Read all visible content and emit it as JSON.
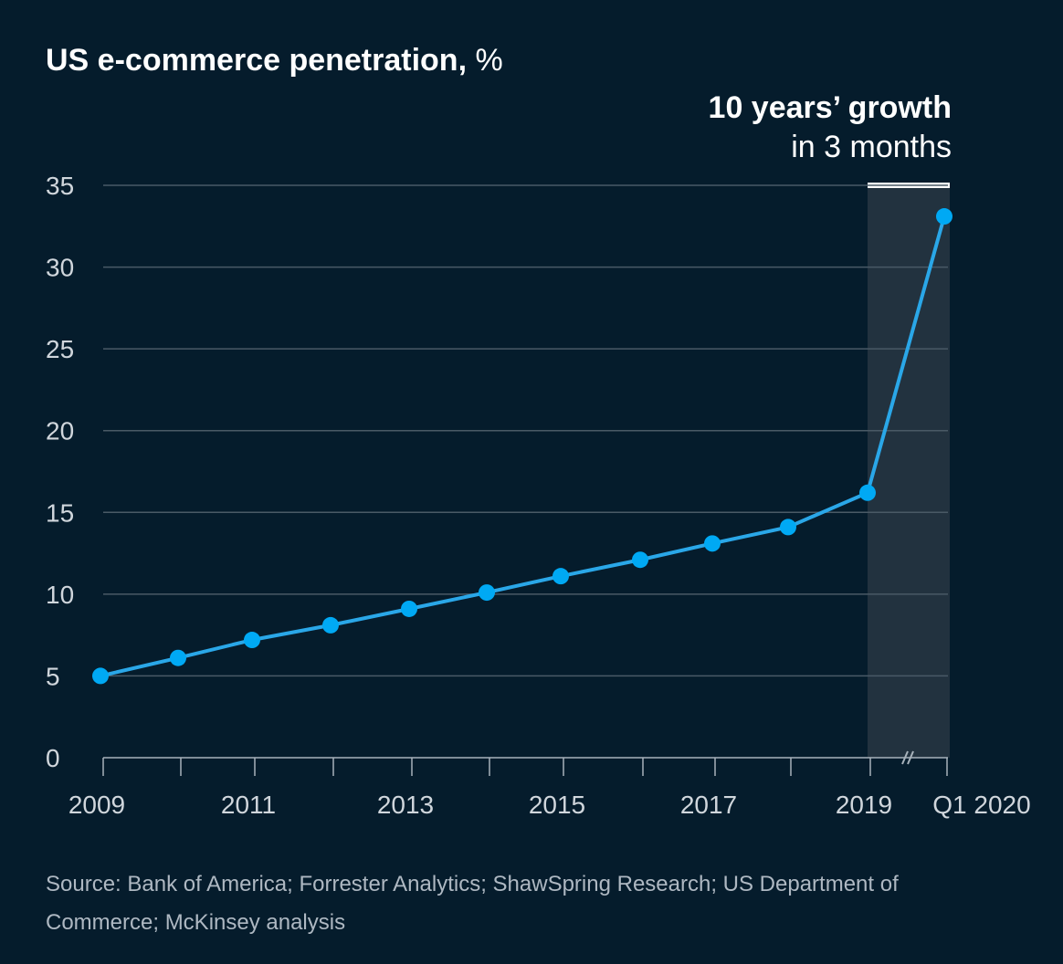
{
  "title": {
    "main": "US e-commerce penetration,",
    "unit": "%"
  },
  "callout": {
    "headline": "10 years’ growth",
    "subline": "in 3 months"
  },
  "source": "Source: Bank of America; Forrester Analytics; ShawSpring Research; US Department of Commerce; McKinsey analysis",
  "colors": {
    "background": "#051c2c",
    "line": "#2aa7e8",
    "marker": "#00a9f4",
    "gridline": "#4a5a66",
    "axis_text": "#d0d6dc",
    "highlight_band": "#22323f",
    "highlight_bar": "#ffffff"
  },
  "chart_data": {
    "type": "line",
    "x": [
      "2009",
      "2010",
      "2011",
      "2012",
      "2013",
      "2014",
      "2015",
      "2016",
      "2017",
      "2018",
      "2019",
      "Q1 2020"
    ],
    "x_tick_labels": [
      "2009",
      "",
      "2011",
      "",
      "2013",
      "",
      "2015",
      "",
      "2017",
      "",
      "2019",
      "Q1 2020"
    ],
    "series": [
      {
        "values": [
          5.0,
          6.1,
          7.2,
          8.1,
          9.1,
          10.1,
          11.1,
          12.1,
          13.1,
          14.1,
          16.2,
          33.1
        ]
      }
    ],
    "y_ticks": [
      0,
      5,
      10,
      15,
      20,
      25,
      30,
      35
    ],
    "ylim": [
      0,
      35
    ],
    "grid": true,
    "axis_break": "between 2019 and Q1 2020",
    "highlight_range": [
      "2019",
      "Q1 2020"
    ],
    "xlabel": "",
    "ylabel": ""
  }
}
